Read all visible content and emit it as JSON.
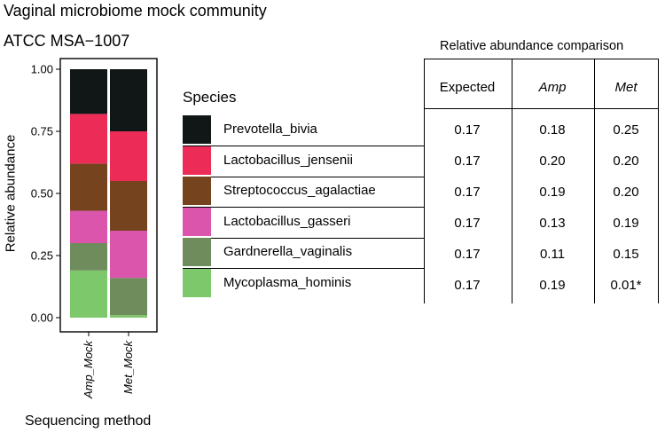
{
  "chart_data": {
    "type": "stacked_bar",
    "title": "Vaginal microbiome mock community",
    "subtitle": "ATCC MSA−1007",
    "xlabel": "Sequencing method",
    "ylabel": "Relative abundance",
    "ylim": [
      0,
      1
    ],
    "yticks": [
      "0.00",
      "0.25",
      "0.50",
      "0.75",
      "1.00"
    ],
    "categories": [
      "Amp_Mock",
      "Met_Mock"
    ],
    "legend_title": "Species",
    "series": [
      {
        "name": "Mycoplasma_hominis",
        "color": "#7dc86a",
        "values": [
          0.19,
          0.01
        ]
      },
      {
        "name": "Gardnerella_vaginalis",
        "color": "#6e8c5c",
        "values": [
          0.11,
          0.15
        ]
      },
      {
        "name": "Lactobacillus_gasseri",
        "color": "#db55ad",
        "values": [
          0.13,
          0.19
        ]
      },
      {
        "name": "Streptococcus_agalactiae",
        "color": "#76431f",
        "values": [
          0.19,
          0.2
        ]
      },
      {
        "name": "Lactobacillus_jensenii",
        "color": "#ec2b57",
        "values": [
          0.2,
          0.2
        ]
      },
      {
        "name": "Prevotella_bivia",
        "color": "#111616",
        "values": [
          0.18,
          0.25
        ]
      }
    ]
  },
  "table": {
    "title": "Relative abundance comparison",
    "columns": [
      "Expected",
      "Amp",
      "Met"
    ],
    "rows": [
      {
        "species": "Prevotella_bivia",
        "values": [
          "0.17",
          "0.18",
          "0.25"
        ]
      },
      {
        "species": "Lactobacillus_jensenii",
        "values": [
          "0.17",
          "0.20",
          "0.20"
        ]
      },
      {
        "species": "Streptococcus_agalactiae",
        "values": [
          "0.17",
          "0.19",
          "0.20"
        ]
      },
      {
        "species": "Lactobacillus_gasseri",
        "values": [
          "0.17",
          "0.13",
          "0.19"
        ]
      },
      {
        "species": "Gardnerella_vaginalis",
        "values": [
          "0.17",
          "0.11",
          "0.15"
        ]
      },
      {
        "species": "Mycoplasma_hominis",
        "values": [
          "0.17",
          "0.19",
          "0.01*"
        ]
      }
    ]
  }
}
